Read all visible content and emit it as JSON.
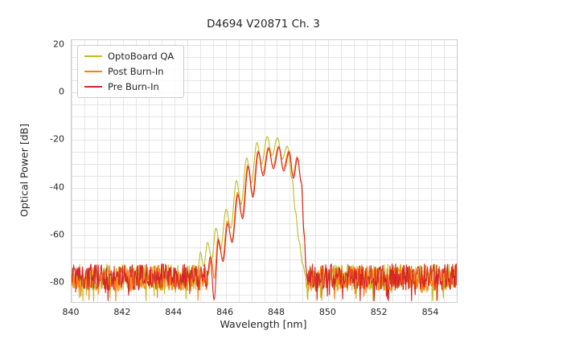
{
  "chart_data": {
    "type": "line",
    "title": "D4694 V20871 Ch. 3",
    "xlabel": "Wavelength [nm]",
    "ylabel": "Optical Power [dB]",
    "xlim": [
      840,
      855
    ],
    "ylim": [
      -88,
      22
    ],
    "x_ticks": [
      840,
      842,
      844,
      846,
      848,
      850,
      852,
      854
    ],
    "y_ticks": [
      20,
      0,
      -20,
      -40,
      -60,
      -80
    ],
    "grid": {
      "on": true,
      "x_step": 0.5,
      "y_step": 5,
      "color": "#dcdcdc"
    },
    "legend_position": "upper left",
    "noise_step_nm": 0.02,
    "series": [
      {
        "name": "OptoBoard QA",
        "color": "#bcbd22",
        "seed": 11,
        "noise": {
          "base": -77.5,
          "amp": 5.5,
          "spike_p": 0.09,
          "spike": 8,
          "regions": [
            [
              840,
              844.9
            ],
            [
              849.12,
              855
            ]
          ]
        },
        "anchors": [
          [
            844.9,
            -76
          ],
          [
            845.02,
            -67
          ],
          [
            845.14,
            -73
          ],
          [
            845.3,
            -63
          ],
          [
            845.46,
            -70
          ],
          [
            845.62,
            -57
          ],
          [
            845.8,
            -66
          ],
          [
            846.02,
            -49
          ],
          [
            846.2,
            -57
          ],
          [
            846.42,
            -37
          ],
          [
            846.6,
            -47
          ],
          [
            846.82,
            -27.5
          ],
          [
            847.0,
            -38
          ],
          [
            847.22,
            -21
          ],
          [
            847.4,
            -30
          ],
          [
            847.62,
            -18.5
          ],
          [
            847.8,
            -26.5
          ],
          [
            848.02,
            -19
          ],
          [
            848.2,
            -28
          ],
          [
            848.4,
            -22.5
          ],
          [
            848.58,
            -36
          ],
          [
            848.72,
            -50
          ],
          [
            848.85,
            -62
          ],
          [
            849.0,
            -72
          ],
          [
            849.12,
            -77
          ]
        ]
      },
      {
        "name": "Post Burn-In",
        "color": "#ff7f0e",
        "seed": 22,
        "noise": {
          "base": -78,
          "amp": 5.5,
          "spike_p": 0.09,
          "spike": 8,
          "regions": [
            [
              840,
              845.3
            ],
            [
              849.18,
              855
            ]
          ]
        },
        "anchors": [
          [
            845.3,
            -77
          ],
          [
            845.44,
            -70
          ],
          [
            845.56,
            -78
          ],
          [
            845.7,
            -61
          ],
          [
            845.88,
            -70
          ],
          [
            846.06,
            -54
          ],
          [
            846.24,
            -62
          ],
          [
            846.46,
            -42
          ],
          [
            846.64,
            -52
          ],
          [
            846.86,
            -30.5
          ],
          [
            847.04,
            -43
          ],
          [
            847.26,
            -24.5
          ],
          [
            847.44,
            -34
          ],
          [
            847.66,
            -23
          ],
          [
            847.84,
            -31
          ],
          [
            848.06,
            -22.5
          ],
          [
            848.24,
            -32
          ],
          [
            848.46,
            -24.5
          ],
          [
            848.62,
            -35
          ],
          [
            848.78,
            -27
          ],
          [
            848.94,
            -37
          ],
          [
            849.05,
            -58
          ],
          [
            849.13,
            -74
          ],
          [
            849.18,
            -79
          ]
        ]
      },
      {
        "name": "Pre Burn-In",
        "color": "#d62728",
        "seed": 33,
        "noise": {
          "base": -77.5,
          "amp": 5.5,
          "spike_p": 0.1,
          "spike": 8,
          "regions": [
            [
              840,
              845.28
            ],
            [
              849.18,
              855
            ]
          ]
        },
        "anchors": [
          [
            845.28,
            -77
          ],
          [
            845.4,
            -69
          ],
          [
            845.55,
            -87
          ],
          [
            845.72,
            -62
          ],
          [
            845.9,
            -71
          ],
          [
            846.08,
            -55
          ],
          [
            846.25,
            -63
          ],
          [
            846.48,
            -43
          ],
          [
            846.66,
            -53
          ],
          [
            846.88,
            -31
          ],
          [
            847.06,
            -44
          ],
          [
            847.28,
            -25
          ],
          [
            847.46,
            -35
          ],
          [
            847.68,
            -23.5
          ],
          [
            847.86,
            -32
          ],
          [
            848.08,
            -23
          ],
          [
            848.26,
            -33
          ],
          [
            848.48,
            -25
          ],
          [
            848.64,
            -36
          ],
          [
            848.8,
            -27.5
          ],
          [
            848.95,
            -38
          ],
          [
            849.06,
            -60
          ],
          [
            849.14,
            -75
          ],
          [
            849.18,
            -79
          ]
        ]
      }
    ]
  }
}
